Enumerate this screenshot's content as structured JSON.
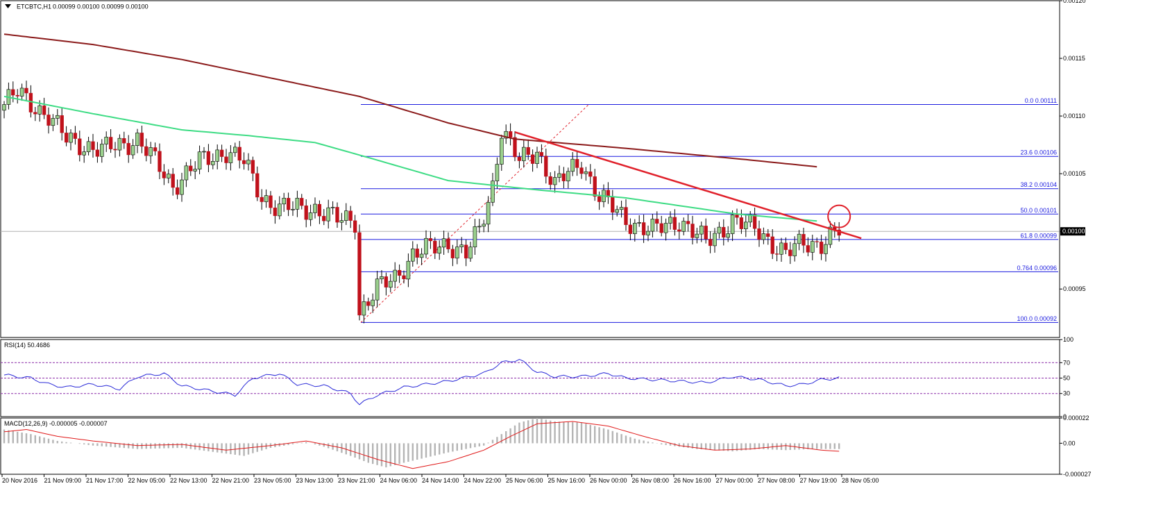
{
  "header": {
    "symbol": "ETCBTC,H1",
    "ohlc": "0.00099 0.00100 0.00099 0.00100"
  },
  "colors": {
    "bull": "#9ad08d",
    "bear": "#c0111b",
    "sma_fast": "#3ddc84",
    "sma_slow": "#8b1a1a",
    "fib": "#1a1adf",
    "trend": "#e0202a",
    "rsi": "#2a2ad8",
    "macd_signal": "#e01818",
    "macd_hist": "#b4b4b4"
  },
  "chart_data": [
    {
      "type": "candlestick",
      "panel": "price",
      "title": "",
      "ylim": [
        0.000908,
        0.0012
      ],
      "y_ticks": [
        "0.00120",
        "0.00115",
        "0.00110",
        "0.00105",
        "0.00100",
        "0.00095"
      ],
      "y_tick_values": [
        0.0012,
        0.00115,
        0.0011,
        0.00105,
        0.001,
        0.00095
      ],
      "current_price": "0.00100",
      "current_price_value": 0.001,
      "x_tick_labels": [
        "20 Nov 2016",
        "21 Nov 09:00",
        "21 Nov 17:00",
        "22 Nov 05:00",
        "22 Nov 13:00",
        "22 Nov 21:00",
        "23 Nov 05:00",
        "23 Nov 13:00",
        "23 Nov 21:00",
        "24 Nov 06:00",
        "24 Nov 14:00",
        "24 Nov 22:00",
        "25 Nov 06:00",
        "25 Nov 16:00",
        "26 Nov 00:00",
        "26 Nov 08:00",
        "26 Nov 16:00",
        "27 Nov 00:00",
        "27 Nov 08:00",
        "27 Nov 19:00",
        "28 Nov 05:00"
      ],
      "close_keyframes": [
        [
          0,
          0.00111
        ],
        [
          3,
          0.00112
        ],
        [
          10,
          0.0011
        ],
        [
          14,
          0.00108
        ],
        [
          22,
          0.00107
        ],
        [
          30,
          0.00108
        ],
        [
          34,
          0.00106
        ],
        [
          38,
          0.00104
        ],
        [
          44,
          0.00106
        ],
        [
          50,
          0.00107
        ],
        [
          54,
          0.00106
        ],
        [
          58,
          0.00103
        ],
        [
          62,
          0.00102
        ],
        [
          70,
          0.00102
        ],
        [
          75,
          0.00101
        ],
        [
          79,
          0.00101
        ],
        [
          80,
          0.00093
        ],
        [
          84,
          0.00095
        ],
        [
          88,
          0.00096
        ],
        [
          92,
          0.00098
        ],
        [
          100,
          0.00099
        ],
        [
          104,
          0.00098
        ],
        [
          107,
          0.001
        ],
        [
          110,
          0.00104
        ],
        [
          112,
          0.00109
        ],
        [
          116,
          0.00106
        ],
        [
          120,
          0.00107
        ],
        [
          124,
          0.00104
        ],
        [
          130,
          0.00106
        ],
        [
          134,
          0.00103
        ],
        [
          140,
          0.00101
        ],
        [
          146,
          0.001
        ],
        [
          152,
          0.00101
        ],
        [
          158,
          0.00099
        ],
        [
          164,
          0.00101
        ],
        [
          170,
          0.001
        ],
        [
          176,
          0.00098
        ],
        [
          180,
          0.00099
        ],
        [
          184,
          0.00099
        ],
        [
          188,
          0.001
        ]
      ],
      "series": [
        {
          "name": "",
          "type": "sma",
          "keyframes": [
            [
              0,
              0.001171
            ],
            [
              20,
              0.001162
            ],
            [
              40,
              0.001149
            ],
            [
              60,
              0.001133
            ],
            [
              80,
              0.001117
            ],
            [
              100,
              0.001094
            ],
            [
              115,
              0.00108
            ],
            [
              140,
              0.001072
            ],
            [
              165,
              0.001063
            ],
            [
              183,
              0.001056
            ]
          ]
        },
        {
          "name": "",
          "type": "sma",
          "keyframes": [
            [
              0,
              0.001117
            ],
            [
              20,
              0.001102
            ],
            [
              40,
              0.001088
            ],
            [
              55,
              0.001083
            ],
            [
              70,
              0.001077
            ],
            [
              82,
              0.001064
            ],
            [
              100,
              0.001044
            ],
            [
              120,
              0.001036
            ],
            [
              140,
              0.001029
            ],
            [
              165,
              0.001015
            ],
            [
              183,
              0.001009
            ]
          ]
        }
      ],
      "fibonacci": [
        {
          "label": "0.0",
          "price": "0.00111",
          "value": 0.00111
        },
        {
          "label": "23.6",
          "price": "0.00106",
          "value": 0.001065
        },
        {
          "label": "38.2",
          "price": "0.00104",
          "value": 0.001037
        },
        {
          "label": "50.0",
          "price": "0.00101",
          "value": 0.001015
        },
        {
          "label": "61.8",
          "price": "0.00099",
          "value": 0.000993
        },
        {
          "label": "0.764",
          "price": "0.00096",
          "value": 0.000965
        },
        {
          "label": "100.0",
          "price": "0.00092",
          "value": 0.000921
        }
      ],
      "fib_anchor": {
        "low_bar": 80,
        "low": 0.000921,
        "high_bar": 116,
        "high": 0.00111
      },
      "trendline": {
        "start": [
          115,
          0.001086
        ],
        "end": [
          193,
          0.000994
        ]
      },
      "highlight_circle": {
        "bar": 188,
        "value": 0.001013
      }
    },
    {
      "type": "line",
      "panel": "rsi",
      "title": "RSI(14) 50.4686",
      "ylim": [
        0,
        100
      ],
      "y_ticks": [
        "100",
        "70",
        "50",
        "30",
        "0"
      ],
      "y_tick_values": [
        100,
        70,
        50,
        30,
        0
      ],
      "levels": [
        70,
        50,
        30
      ],
      "keyframes": [
        [
          0,
          54
        ],
        [
          6,
          50
        ],
        [
          10,
          42
        ],
        [
          14,
          38
        ],
        [
          20,
          42
        ],
        [
          26,
          36
        ],
        [
          30,
          52
        ],
        [
          36,
          56
        ],
        [
          40,
          40
        ],
        [
          48,
          32
        ],
        [
          52,
          28
        ],
        [
          56,
          50
        ],
        [
          62,
          56
        ],
        [
          66,
          42
        ],
        [
          72,
          40
        ],
        [
          78,
          30
        ],
        [
          80,
          16
        ],
        [
          84,
          28
        ],
        [
          90,
          38
        ],
        [
          100,
          46
        ],
        [
          108,
          56
        ],
        [
          112,
          70
        ],
        [
          116,
          74
        ],
        [
          120,
          58
        ],
        [
          124,
          52
        ],
        [
          130,
          52
        ],
        [
          136,
          56
        ],
        [
          140,
          50
        ],
        [
          146,
          48
        ],
        [
          152,
          46
        ],
        [
          158,
          44
        ],
        [
          164,
          52
        ],
        [
          170,
          48
        ],
        [
          176,
          40
        ],
        [
          180,
          42
        ],
        [
          184,
          48
        ],
        [
          188,
          50
        ]
      ]
    },
    {
      "type": "bar+line",
      "panel": "macd",
      "title": "MACD(12,26,9) -0.000005 -0.000007",
      "ylim": [
        -2.7e-05,
        2.2e-05
      ],
      "y_ticks": [
        "0.000022",
        "0.00",
        "-0.000027"
      ],
      "y_tick_values": [
        2.2e-05,
        0,
        -2.7e-05
      ],
      "histogram_keyframes": [
        [
          0,
          1.2e-05
        ],
        [
          6,
          8e-06
        ],
        [
          12,
          2e-06
        ],
        [
          20,
          -2e-06
        ],
        [
          30,
          -5e-06
        ],
        [
          40,
          -4e-06
        ],
        [
          46,
          -7e-06
        ],
        [
          54,
          -1.1e-05
        ],
        [
          60,
          -4e-06
        ],
        [
          68,
          1e-06
        ],
        [
          72,
          -3e-06
        ],
        [
          78,
          -1.1e-05
        ],
        [
          82,
          -1.7e-05
        ],
        [
          86,
          -2.1e-05
        ],
        [
          90,
          -1.7e-05
        ],
        [
          100,
          -8e-06
        ],
        [
          108,
          -2e-06
        ],
        [
          112,
          8e-06
        ],
        [
          116,
          1.8e-05
        ],
        [
          120,
          2.2e-05
        ],
        [
          124,
          1.9e-05
        ],
        [
          130,
          1.8e-05
        ],
        [
          136,
          1.2e-05
        ],
        [
          142,
          4e-06
        ],
        [
          148,
          -1e-06
        ],
        [
          156,
          -5e-06
        ],
        [
          164,
          -7e-06
        ],
        [
          170,
          -5e-06
        ],
        [
          176,
          -6e-06
        ],
        [
          182,
          -5e-06
        ],
        [
          188,
          -5e-06
        ]
      ],
      "signal_keyframes": [
        [
          0,
          1e-05
        ],
        [
          5,
          1.2e-05
        ],
        [
          12,
          6e-06
        ],
        [
          20,
          2e-06
        ],
        [
          30,
          -2e-06
        ],
        [
          40,
          -1e-06
        ],
        [
          50,
          -6e-06
        ],
        [
          60,
          -2e-06
        ],
        [
          68,
          2e-06
        ],
        [
          76,
          -4e-06
        ],
        [
          84,
          -1.4e-05
        ],
        [
          92,
          -2.2e-05
        ],
        [
          100,
          -1.6e-05
        ],
        [
          108,
          -6e-06
        ],
        [
          114,
          6e-06
        ],
        [
          120,
          1.7e-05
        ],
        [
          128,
          1.9e-05
        ],
        [
          136,
          1.5e-05
        ],
        [
          144,
          6e-06
        ],
        [
          152,
          -2e-06
        ],
        [
          160,
          -6e-06
        ],
        [
          168,
          -5e-06
        ],
        [
          176,
          -2e-06
        ],
        [
          184,
          -6e-06
        ],
        [
          188,
          -7e-06
        ]
      ]
    }
  ]
}
